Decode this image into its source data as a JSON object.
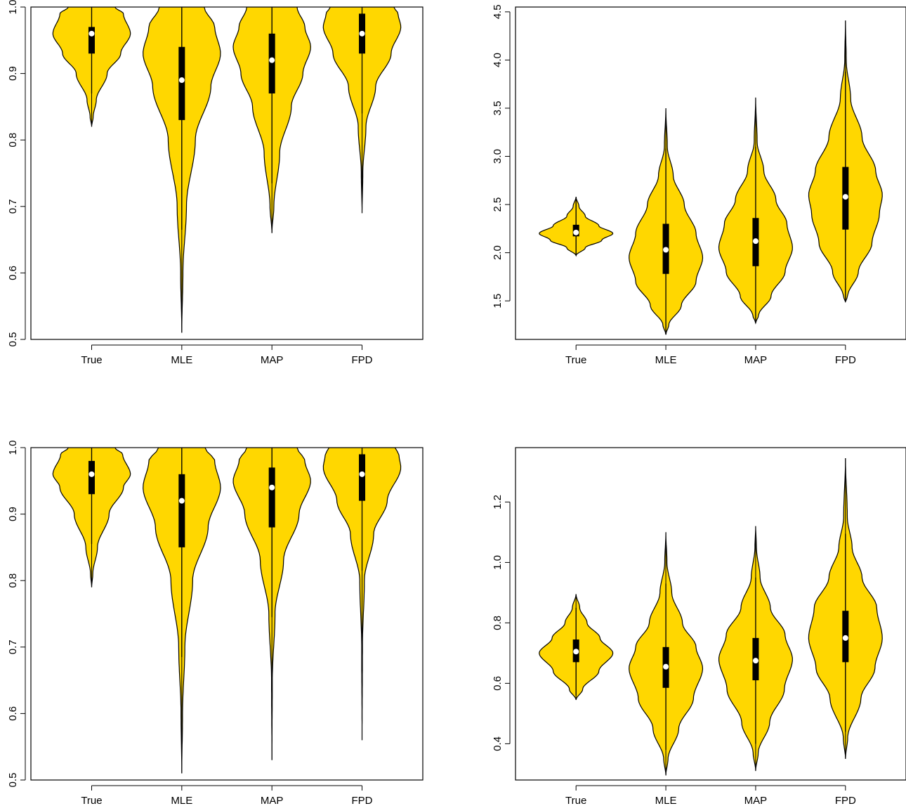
{
  "colors": {
    "violin_fill": "#FFD700",
    "outline": "#000000",
    "median": "#ffffff"
  },
  "chart_data": [
    {
      "type": "violin",
      "categories": [
        "True",
        "MLE",
        "MAP",
        "FPD"
      ],
      "ylim": [
        0.5,
        1.0
      ],
      "yticks": [
        0.5,
        0.6,
        0.7,
        0.8,
        0.9,
        1.0
      ],
      "ytick_labels": [
        "0.5",
        "0.6",
        "0.7",
        "0.8",
        "0.9",
        "1.0"
      ],
      "grid": false,
      "violins": [
        {
          "min": 0.82,
          "max": 1.0,
          "q1": 0.93,
          "median": 0.96,
          "q3": 0.97,
          "whisker_low": 0.87,
          "whisker_high": 1.0,
          "width": 0.86,
          "profile": [
            [
              0.82,
              0.0
            ],
            [
              0.835,
              0.04
            ],
            [
              0.86,
              0.12
            ],
            [
              0.9,
              0.4
            ],
            [
              0.93,
              0.75
            ],
            [
              0.96,
              1.0
            ],
            [
              0.99,
              0.82
            ],
            [
              1.0,
              0.6
            ]
          ]
        },
        {
          "min": 0.51,
          "max": 1.0,
          "q1": 0.83,
          "median": 0.89,
          "q3": 0.94,
          "whisker_low": 0.665,
          "whisker_high": 1.0,
          "width": 0.86,
          "profile": [
            [
              0.51,
              0.0
            ],
            [
              0.6,
              0.03
            ],
            [
              0.7,
              0.12
            ],
            [
              0.8,
              0.35
            ],
            [
              0.88,
              0.75
            ],
            [
              0.93,
              1.0
            ],
            [
              0.97,
              0.85
            ],
            [
              1.0,
              0.58
            ]
          ]
        },
        {
          "min": 0.66,
          "max": 1.0,
          "q1": 0.87,
          "median": 0.92,
          "q3": 0.96,
          "whisker_low": 0.735,
          "whisker_high": 1.0,
          "width": 0.86,
          "profile": [
            [
              0.66,
              0.0
            ],
            [
              0.7,
              0.05
            ],
            [
              0.78,
              0.2
            ],
            [
              0.85,
              0.5
            ],
            [
              0.9,
              0.8
            ],
            [
              0.94,
              1.0
            ],
            [
              0.97,
              0.85
            ],
            [
              1.0,
              0.65
            ]
          ]
        },
        {
          "min": 0.69,
          "max": 1.0,
          "q1": 0.93,
          "median": 0.96,
          "q3": 0.99,
          "whisker_low": 0.84,
          "whisker_high": 1.0,
          "width": 0.86,
          "profile": [
            [
              0.69,
              0.0
            ],
            [
              0.75,
              0.02
            ],
            [
              0.82,
              0.1
            ],
            [
              0.88,
              0.35
            ],
            [
              0.93,
              0.75
            ],
            [
              0.97,
              1.0
            ],
            [
              0.99,
              0.93
            ],
            [
              1.0,
              0.82
            ]
          ]
        }
      ]
    },
    {
      "type": "violin",
      "categories": [
        "True",
        "MLE",
        "MAP",
        "FPD"
      ],
      "ylim": [
        1.1,
        4.55
      ],
      "yticks": [
        1.5,
        2.0,
        2.5,
        3.0,
        3.5,
        4.0,
        4.5
      ],
      "ytick_labels": [
        "1.5",
        "2.0",
        "2.5",
        "3.0",
        "3.5",
        "4.0",
        "4.5"
      ],
      "grid": false,
      "violins": [
        {
          "min": 1.97,
          "max": 2.58,
          "q1": 2.17,
          "median": 2.21,
          "q3": 2.29,
          "whisker_low": 1.97,
          "whisker_high": 2.58,
          "width": 0.82,
          "profile": [
            [
              1.97,
              0.0
            ],
            [
              2.05,
              0.25
            ],
            [
              2.13,
              0.7
            ],
            [
              2.2,
              1.0
            ],
            [
              2.28,
              0.62
            ],
            [
              2.38,
              0.25
            ],
            [
              2.48,
              0.08
            ],
            [
              2.58,
              0.0
            ]
          ]
        },
        {
          "min": 1.15,
          "max": 3.5,
          "q1": 1.78,
          "median": 2.03,
          "q3": 2.3,
          "whisker_low": 1.15,
          "whisker_high": 3.08,
          "width": 0.82,
          "profile": [
            [
              1.15,
              0.0
            ],
            [
              1.25,
              0.08
            ],
            [
              1.45,
              0.42
            ],
            [
              1.7,
              0.82
            ],
            [
              1.95,
              1.0
            ],
            [
              2.2,
              0.82
            ],
            [
              2.5,
              0.5
            ],
            [
              2.8,
              0.2
            ],
            [
              3.1,
              0.04
            ],
            [
              3.5,
              0.0
            ]
          ]
        },
        {
          "min": 1.27,
          "max": 3.61,
          "q1": 1.86,
          "median": 2.12,
          "q3": 2.36,
          "whisker_low": 1.27,
          "whisker_high": 3.1,
          "width": 0.82,
          "profile": [
            [
              1.27,
              0.0
            ],
            [
              1.35,
              0.08
            ],
            [
              1.55,
              0.42
            ],
            [
              1.8,
              0.8
            ],
            [
              2.05,
              1.0
            ],
            [
              2.3,
              0.85
            ],
            [
              2.55,
              0.55
            ],
            [
              2.85,
              0.22
            ],
            [
              3.15,
              0.04
            ],
            [
              3.61,
              0.0
            ]
          ]
        },
        {
          "min": 1.49,
          "max": 4.41,
          "q1": 2.24,
          "median": 2.58,
          "q3": 2.89,
          "whisker_low": 1.49,
          "whisker_high": 3.88,
          "width": 0.82,
          "profile": [
            [
              1.49,
              0.0
            ],
            [
              1.55,
              0.06
            ],
            [
              1.8,
              0.35
            ],
            [
              2.1,
              0.72
            ],
            [
              2.4,
              0.92
            ],
            [
              2.6,
              1.0
            ],
            [
              2.85,
              0.82
            ],
            [
              3.2,
              0.45
            ],
            [
              3.6,
              0.14
            ],
            [
              4.0,
              0.02
            ],
            [
              4.41,
              0.0
            ]
          ]
        }
      ]
    },
    {
      "type": "violin",
      "categories": [
        "True",
        "MLE",
        "MAP",
        "FPD"
      ],
      "ylim": [
        0.5,
        1.0
      ],
      "yticks": [
        0.5,
        0.6,
        0.7,
        0.8,
        0.9,
        1.0
      ],
      "ytick_labels": [
        "0.5",
        "0.6",
        "0.7",
        "0.8",
        "0.9",
        "1.0"
      ],
      "grid": false,
      "violins": [
        {
          "min": 0.79,
          "max": 1.0,
          "q1": 0.93,
          "median": 0.96,
          "q3": 0.98,
          "whisker_low": 0.855,
          "whisker_high": 1.0,
          "width": 0.86,
          "profile": [
            [
              0.79,
              0.0
            ],
            [
              0.81,
              0.03
            ],
            [
              0.85,
              0.15
            ],
            [
              0.9,
              0.45
            ],
            [
              0.94,
              0.82
            ],
            [
              0.96,
              1.0
            ],
            [
              0.99,
              0.8
            ],
            [
              1.0,
              0.6
            ]
          ]
        },
        {
          "min": 0.51,
          "max": 1.0,
          "q1": 0.85,
          "median": 0.92,
          "q3": 0.96,
          "whisker_low": 0.685,
          "whisker_high": 1.0,
          "width": 0.86,
          "profile": [
            [
              0.51,
              0.0
            ],
            [
              0.6,
              0.02
            ],
            [
              0.7,
              0.08
            ],
            [
              0.8,
              0.28
            ],
            [
              0.88,
              0.68
            ],
            [
              0.94,
              1.0
            ],
            [
              0.98,
              0.85
            ],
            [
              1.0,
              0.6
            ]
          ]
        },
        {
          "min": 0.53,
          "max": 1.0,
          "q1": 0.88,
          "median": 0.94,
          "q3": 0.97,
          "whisker_low": 0.745,
          "whisker_high": 1.0,
          "width": 0.86,
          "profile": [
            [
              0.53,
              0.0
            ],
            [
              0.65,
              0.01
            ],
            [
              0.75,
              0.08
            ],
            [
              0.83,
              0.3
            ],
            [
              0.9,
              0.7
            ],
            [
              0.95,
              1.0
            ],
            [
              0.98,
              0.85
            ],
            [
              1.0,
              0.65
            ]
          ]
        },
        {
          "min": 0.56,
          "max": 1.0,
          "q1": 0.92,
          "median": 0.96,
          "q3": 0.99,
          "whisker_low": 0.815,
          "whisker_high": 1.0,
          "width": 0.86,
          "profile": [
            [
              0.56,
              0.0
            ],
            [
              0.7,
              0.01
            ],
            [
              0.8,
              0.06
            ],
            [
              0.87,
              0.3
            ],
            [
              0.92,
              0.65
            ],
            [
              0.97,
              1.0
            ],
            [
              0.99,
              0.95
            ],
            [
              1.0,
              0.85
            ]
          ]
        }
      ]
    },
    {
      "type": "violin",
      "categories": [
        "True",
        "MLE",
        "MAP",
        "FPD"
      ],
      "ylim": [
        0.28,
        1.38
      ],
      "yticks": [
        0.4,
        0.6,
        0.8,
        1.0,
        1.2
      ],
      "ytick_labels": [
        "0.4",
        "0.6",
        "0.8",
        "1.0",
        "1.2"
      ],
      "grid": false,
      "violins": [
        {
          "min": 0.545,
          "max": 0.895,
          "q1": 0.67,
          "median": 0.705,
          "q3": 0.745,
          "whisker_low": 0.56,
          "whisker_high": 0.85,
          "width": 0.82,
          "profile": [
            [
              0.545,
              0.0
            ],
            [
              0.58,
              0.18
            ],
            [
              0.64,
              0.62
            ],
            [
              0.7,
              1.0
            ],
            [
              0.75,
              0.65
            ],
            [
              0.8,
              0.3
            ],
            [
              0.85,
              0.1
            ],
            [
              0.895,
              0.0
            ]
          ]
        },
        {
          "min": 0.295,
          "max": 1.1,
          "q1": 0.585,
          "median": 0.655,
          "q3": 0.72,
          "whisker_low": 0.38,
          "whisker_high": 0.93,
          "width": 0.82,
          "profile": [
            [
              0.295,
              0.0
            ],
            [
              0.35,
              0.06
            ],
            [
              0.45,
              0.35
            ],
            [
              0.55,
              0.75
            ],
            [
              0.65,
              1.0
            ],
            [
              0.72,
              0.82
            ],
            [
              0.8,
              0.45
            ],
            [
              0.9,
              0.16
            ],
            [
              1.0,
              0.03
            ],
            [
              1.1,
              0.0
            ]
          ]
        },
        {
          "min": 0.31,
          "max": 1.12,
          "q1": 0.61,
          "median": 0.675,
          "q3": 0.75,
          "whisker_low": 0.4,
          "whisker_high": 0.95,
          "width": 0.82,
          "profile": [
            [
              0.31,
              0.0
            ],
            [
              0.37,
              0.07
            ],
            [
              0.47,
              0.38
            ],
            [
              0.58,
              0.78
            ],
            [
              0.68,
              1.0
            ],
            [
              0.76,
              0.8
            ],
            [
              0.85,
              0.4
            ],
            [
              0.95,
              0.12
            ],
            [
              1.05,
              0.02
            ],
            [
              1.12,
              0.0
            ]
          ]
        },
        {
          "min": 0.35,
          "max": 1.345,
          "q1": 0.67,
          "median": 0.75,
          "q3": 0.84,
          "whisker_low": 0.44,
          "whisker_high": 1.095,
          "width": 0.82,
          "profile": [
            [
              0.35,
              0.0
            ],
            [
              0.42,
              0.06
            ],
            [
              0.55,
              0.42
            ],
            [
              0.65,
              0.8
            ],
            [
              0.75,
              1.0
            ],
            [
              0.85,
              0.85
            ],
            [
              0.95,
              0.45
            ],
            [
              1.05,
              0.18
            ],
            [
              1.15,
              0.05
            ],
            [
              1.345,
              0.0
            ]
          ]
        }
      ]
    }
  ]
}
